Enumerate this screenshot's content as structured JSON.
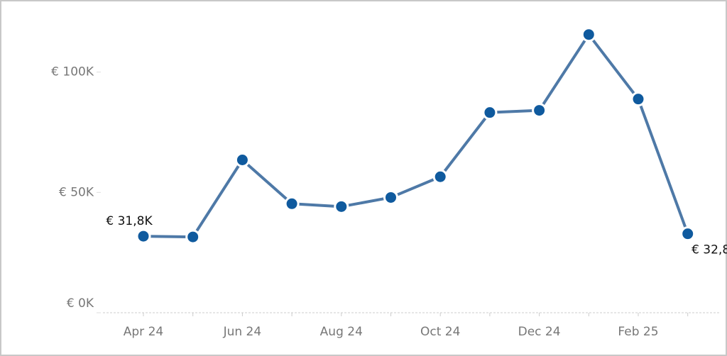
{
  "chart_data": {
    "type": "line",
    "categories": [
      "Apr 24",
      null,
      "Jun 24",
      null,
      "Aug 24",
      null,
      "Oct 24",
      null,
      "Dec 24",
      null,
      "Feb 25",
      null
    ],
    "series": [
      {
        "color": "#4e79a7",
        "marker_color": "#0f5a9e",
        "values": [
          31.8,
          31.5,
          63.5,
          45.3,
          44.1,
          47.9,
          56.5,
          83.2,
          84.1,
          115.6,
          88.8,
          32.8
        ],
        "value_labels": [
          "€ 31,8K",
          null,
          null,
          null,
          null,
          null,
          null,
          null,
          null,
          null,
          null,
          "€ 32,8K"
        ]
      }
    ],
    "ylim": [
      0,
      127
    ],
    "yticks": [
      {
        "value": 0,
        "label": "€ 0K"
      },
      {
        "value": 50,
        "label": "€ 50K"
      },
      {
        "value": 100,
        "label": "€ 100K"
      }
    ],
    "grid": false
  }
}
